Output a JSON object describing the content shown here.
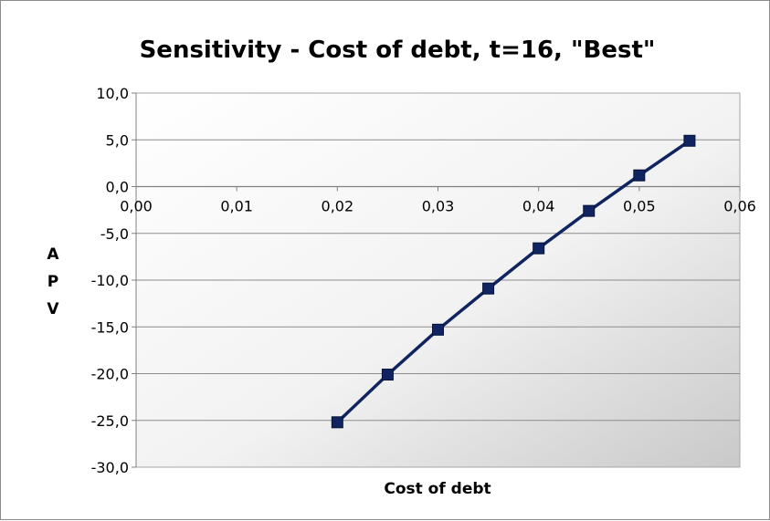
{
  "chart_data": {
    "type": "line",
    "title": "Sensitivity - Cost of debt, t=16, \"Best\"",
    "xlabel": "Cost of debt",
    "ylabel": "APV",
    "ylabel_letters": [
      "A",
      "P",
      "V"
    ],
    "xlim": [
      0,
      0.06
    ],
    "ylim": [
      -30,
      10
    ],
    "xticks": [
      0,
      0.01,
      0.02,
      0.03,
      0.04,
      0.05,
      0.06
    ],
    "xtick_labels": [
      "0,00",
      "0,01",
      "0,02",
      "0,03",
      "0,04",
      "0,05",
      "0,06"
    ],
    "yticks": [
      10,
      5,
      0,
      -5,
      -10,
      -15,
      -20,
      -25,
      -30
    ],
    "ytick_labels": [
      "10,0",
      "5,0",
      "0,0",
      "-5,0",
      "-10,0",
      "-15,0",
      "-20,0",
      "-25,0",
      "-30,0"
    ],
    "grid": true,
    "x_axis_position": "at y=0",
    "legend": "none",
    "series": [
      {
        "x": [
          0.02,
          0.025,
          0.03,
          0.035,
          0.04,
          0.045,
          0.05,
          0.055
        ],
        "y": [
          -25.2,
          -20.1,
          -15.3,
          -10.9,
          -6.6,
          -2.6,
          1.2,
          4.9
        ],
        "color": "#0f2460",
        "marker": "square"
      }
    ]
  }
}
